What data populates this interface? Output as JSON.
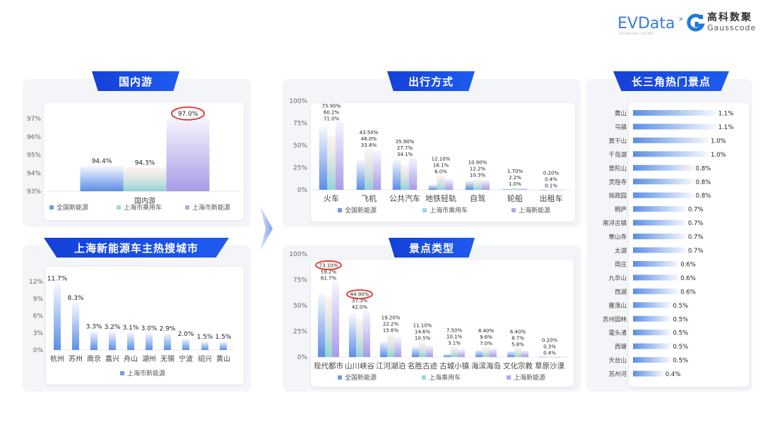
{
  "logos": {
    "evdata": "EVData",
    "evdata_sub": "SHANGHAI CHINA",
    "gauss_cn": "高科数聚",
    "gauss_en": "Gausscode"
  },
  "colors": {
    "banner": "#1a4fe8",
    "series1": "#5b8ee6",
    "series2": "#8ed4d6",
    "series3": "#a89ce8",
    "highlight": "#e0322b"
  },
  "panels": {
    "domestic": "国内游",
    "cities": "上海新能源车主热搜城市",
    "transport": "出行方式",
    "scenic_type": "景点类型",
    "hot_spots": "长三角热门景点"
  },
  "chart_data": [
    {
      "id": "domestic",
      "type": "bar",
      "title": "国内游",
      "categories": [
        "国内游"
      ],
      "yticks": [
        "93%",
        "94%",
        "95%",
        "96%",
        "97%"
      ],
      "ylim": [
        93,
        97
      ],
      "series": [
        {
          "name": "全国新能源",
          "values": [
            94.4
          ],
          "labels": [
            "94.4%"
          ]
        },
        {
          "name": "上海市乘用车",
          "values": [
            94.3
          ],
          "labels": [
            "94.3%"
          ]
        },
        {
          "name": "上海市新能源",
          "values": [
            97.0
          ],
          "labels": [
            "97.0%"
          ]
        }
      ],
      "highlighted": [
        {
          "series": 2,
          "category": 0
        }
      ],
      "legend": "bottom"
    },
    {
      "id": "cities",
      "type": "bar",
      "title": "上海新能源车主热搜城市",
      "categories": [
        "杭州",
        "苏州",
        "南京",
        "嘉兴",
        "舟山",
        "湖州",
        "无锡",
        "宁波",
        "绍兴",
        "黄山"
      ],
      "yticks": [
        "0%",
        "3%",
        "6%",
        "9%",
        "12%"
      ],
      "ylim": [
        0,
        12
      ],
      "series": [
        {
          "name": "上海市新能源",
          "values": [
            11.7,
            8.3,
            3.3,
            3.2,
            3.1,
            3.0,
            2.9,
            2.0,
            1.5,
            1.5
          ],
          "labels": [
            "11.7%",
            "8.3%",
            "3.3%",
            "3.2%",
            "3.1%",
            "3.0%",
            "2.9%",
            "2.0%",
            "1.5%",
            "1.5%"
          ]
        }
      ],
      "legend": "bottom"
    },
    {
      "id": "transport",
      "type": "bar",
      "title": "出行方式",
      "categories": [
        "火车",
        "飞机",
        "公共汽车",
        "地铁轻轨",
        "自驾",
        "轮船",
        "出租车"
      ],
      "yticks": [
        "0%",
        "25%",
        "50%",
        "75%",
        "100%"
      ],
      "ylim": [
        0,
        100
      ],
      "series": [
        {
          "name": "全国新能源",
          "values": [
            71.0,
            33.8,
            34.1,
            6.0,
            10.3,
            1.0,
            0.1
          ],
          "labels": [
            "71.0%",
            "33.8%",
            "34.1%",
            "6.0%",
            "10.3%",
            "1.0%",
            "0.1%"
          ]
        },
        {
          "name": "上海市乘用车",
          "values": [
            60.2,
            46.0,
            27.7,
            16.1,
            12.2,
            2.2,
            0.4
          ],
          "labels": [
            "60.2%",
            "46.0%",
            "27.7%",
            "16.1%",
            "12.2%",
            "2.2%",
            "0.4%"
          ]
        },
        {
          "name": "上海新能源",
          "values": [
            75.9,
            43.5,
            35.9,
            12.1,
            10.9,
            1.7,
            0.2
          ],
          "labels": [
            "75.90%",
            "43.50%",
            "35.90%",
            "12.10%",
            "10.90%",
            "1.70%",
            "0.20%"
          ]
        }
      ],
      "legend": "bottom"
    },
    {
      "id": "scenic_type",
      "type": "bar",
      "title": "景点类型",
      "categories": [
        "现代都市",
        "山川峡谷",
        "江河湖泊",
        "名胜古迹",
        "古城小镇",
        "海滨海岛",
        "文化宗教",
        "草原沙漠"
      ],
      "yticks": [
        "0%",
        "25%",
        "50%",
        "75%",
        "100%"
      ],
      "ylim": [
        0,
        100
      ],
      "series": [
        {
          "name": "全国新能源",
          "values": [
            61.7,
            42.0,
            15.6,
            10.5,
            3.1,
            7.0,
            5.8,
            0.4
          ],
          "labels": [
            "61.7%",
            "42.0%",
            "15.6%",
            "10.5%",
            "3.1%",
            "7.0%",
            "5.8%",
            "0.4%"
          ]
        },
        {
          "name": "上海乘用车",
          "values": [
            59.2,
            37.3,
            22.2,
            14.6,
            10.1,
            9.6,
            8.7,
            0.3
          ],
          "labels": [
            "59.2%",
            "37.3%",
            "22.2%",
            "14.6%",
            "10.1%",
            "9.6%",
            "8.7%",
            "0.3%"
          ]
        },
        {
          "name": "上海新能源",
          "values": [
            73.1,
            44.9,
            19.2,
            11.1,
            7.5,
            8.4,
            6.4,
            0.2
          ],
          "labels": [
            "73.10%",
            "44.90%",
            "19.20%",
            "11.10%",
            "7.50%",
            "8.40%",
            "6.40%",
            "0.20%"
          ]
        }
      ],
      "highlighted": [
        {
          "series": 2,
          "category": 0
        },
        {
          "series": 2,
          "category": 1
        }
      ],
      "legend": "bottom"
    },
    {
      "id": "hot_spots",
      "type": "bar",
      "orientation": "horizontal",
      "title": "长三角热门景点",
      "categories": [
        "黄山",
        "乌镇",
        "莫干山",
        "千岛湖",
        "普陀山",
        "灵隐寺",
        "拙政园",
        "桐庐",
        "南浔古镇",
        "寒山寺",
        "太湖",
        "周庄",
        "九华山",
        "西湖",
        "雁荡山",
        "苏州园林",
        "鼋头渚",
        "西塘",
        "天台山",
        "苏州河"
      ],
      "values": [
        1.1,
        1.1,
        1.0,
        1.0,
        0.8,
        0.8,
        0.8,
        0.7,
        0.7,
        0.7,
        0.7,
        0.6,
        0.6,
        0.6,
        0.5,
        0.5,
        0.5,
        0.5,
        0.5,
        0.4
      ],
      "labels": [
        "1.1%",
        "1.1%",
        "1.0%",
        "1.0%",
        "0.8%",
        "0.8%",
        "0.8%",
        "0.7%",
        "0.7%",
        "0.7%",
        "0.7%",
        "0.6%",
        "0.6%",
        "0.6%",
        "0.5%",
        "0.5%",
        "0.5%",
        "0.5%",
        "0.5%",
        "0.4%"
      ]
    }
  ]
}
